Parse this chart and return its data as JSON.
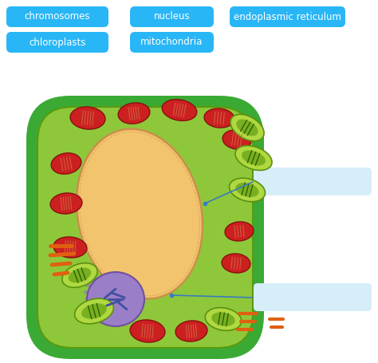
{
  "bg_color": "#ffffff",
  "label_box_color": "#29b6f6",
  "label_text_color": "#ffffff",
  "label_font_size": 8.5,
  "labels_row1": [
    "chromosomes",
    "nucleus",
    "endoplasmic reticulum"
  ],
  "labels_row2": [
    "chloroplasts",
    "mitochondria"
  ],
  "answer_box_color": "#d6eef8",
  "cell_outer_color": "#3aaa35",
  "cell_inner_color": "#8ec83a",
  "cell_outline_inner": "#5a9a10",
  "nucleus_color": "#f2c46e",
  "nucleus_outline": "#c8904a",
  "nucleolus_color": "#9b7ec8",
  "nucleolus_outline": "#7050a0",
  "chromatin_color": "#6070b0",
  "golgi_color": "#909090",
  "mito_fill": "#8dc63f",
  "mito_outline": "#4a8010",
  "mito_inner": "#2a5a00",
  "red_fill": "#cc2020",
  "red_outline": "#881010",
  "red_inner": "#991818",
  "orange_color": "#e06010",
  "arrow_color": "#3a7abf"
}
